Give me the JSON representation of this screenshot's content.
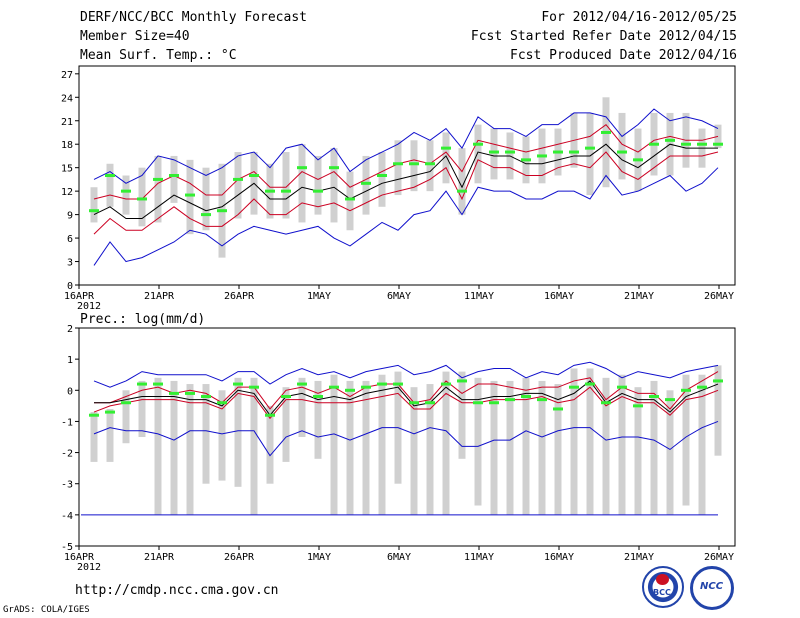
{
  "header": {
    "title": "DERF/NCC/BCC Monthly Forecast",
    "member_size": "Member Size=40",
    "variable": "Mean Surf. Temp.: °C",
    "period": "For 2012/04/16-2012/05/25",
    "started": "Fcst Started Refer Date 2012/04/15",
    "produced": "Fcst Produced Date 2012/04/16"
  },
  "footer": {
    "url": "http://cmdp.ncc.cma.gov.cn",
    "credit": "GrADS: COLA/IGES"
  },
  "logos": {
    "bcc": "BCC",
    "ncc": "NCC"
  },
  "colors": {
    "box": "#d0d0d0",
    "spread": "#1010cc",
    "quartile": "#cc0022",
    "mean": "#000000",
    "obs": "#33ee33",
    "axis": "#000000"
  },
  "chart_data": [
    {
      "type": "line",
      "label": "Mean Surf. Temp.: °C",
      "x_tick_labels": [
        "16APR",
        "21APR",
        "26APR",
        "1MAY",
        "6MAY",
        "11MAY",
        "16MAY",
        "21MAY",
        "26MAY"
      ],
      "x_year_label": "2012",
      "days": 40,
      "ylim": [
        0,
        28
      ],
      "yticks": [
        0,
        3,
        6,
        9,
        12,
        15,
        18,
        21,
        24,
        27
      ],
      "series": [
        {
          "name": "max",
          "values": [
            13.5,
            14.5,
            13.0,
            14.0,
            16.5,
            16.0,
            15.0,
            14.0,
            15.0,
            16.5,
            17.0,
            15.0,
            17.5,
            18.0,
            16.0,
            17.5,
            14.5,
            16.0,
            17.0,
            18.0,
            19.5,
            18.5,
            20.0,
            17.5,
            21.5,
            20.0,
            20.0,
            19.0,
            20.5,
            20.5,
            22.0,
            22.0,
            21.5,
            19.0,
            20.5,
            22.5,
            21.0,
            21.5,
            21.0,
            20.0
          ]
        },
        {
          "name": "q75",
          "values": [
            11.0,
            11.5,
            11.0,
            11.0,
            13.0,
            14.0,
            13.0,
            11.5,
            11.5,
            13.5,
            14.5,
            12.5,
            12.5,
            14.5,
            13.5,
            14.5,
            12.5,
            13.5,
            14.5,
            15.5,
            16.0,
            15.5,
            17.0,
            14.5,
            18.5,
            18.0,
            17.5,
            17.0,
            17.5,
            18.0,
            18.5,
            19.0,
            20.5,
            18.0,
            17.0,
            18.5,
            19.0,
            18.5,
            18.5,
            19.0
          ]
        },
        {
          "name": "mean",
          "values": [
            9.0,
            10.0,
            8.5,
            8.5,
            10.0,
            11.5,
            10.5,
            9.5,
            10.0,
            11.5,
            13.0,
            11.0,
            11.0,
            12.5,
            12.0,
            12.5,
            11.0,
            12.0,
            13.0,
            13.5,
            14.0,
            14.5,
            16.5,
            12.5,
            17.0,
            16.5,
            16.5,
            15.5,
            15.5,
            16.0,
            16.5,
            16.5,
            18.0,
            16.0,
            15.0,
            16.5,
            18.0,
            17.5,
            17.5,
            17.5
          ]
        },
        {
          "name": "q25",
          "values": [
            6.5,
            8.5,
            7.0,
            7.0,
            8.5,
            10.0,
            8.5,
            7.5,
            7.5,
            9.0,
            11.0,
            9.0,
            9.0,
            10.5,
            10.0,
            10.5,
            9.5,
            10.5,
            11.5,
            12.0,
            12.5,
            13.5,
            15.0,
            11.0,
            16.0,
            15.0,
            15.0,
            14.0,
            14.0,
            15.0,
            15.5,
            15.0,
            17.0,
            14.5,
            13.5,
            15.0,
            16.5,
            16.5,
            16.5,
            17.0
          ]
        },
        {
          "name": "min",
          "values": [
            2.5,
            5.5,
            3.0,
            3.5,
            4.5,
            5.5,
            7.0,
            6.5,
            5.0,
            6.5,
            7.5,
            7.0,
            6.5,
            7.0,
            7.5,
            6.0,
            5.0,
            6.5,
            8.0,
            7.0,
            9.0,
            9.5,
            12.0,
            9.0,
            12.5,
            12.0,
            12.0,
            11.0,
            11.0,
            12.0,
            12.0,
            11.0,
            14.0,
            11.5,
            12.0,
            13.0,
            14.0,
            12.0,
            13.0,
            15.0
          ]
        },
        {
          "name": "obs",
          "values": [
            9.5,
            14.0,
            12.0,
            11.0,
            13.5,
            14.0,
            11.5,
            9.0,
            9.5,
            13.5,
            14.0,
            12.0,
            12.0,
            15.0,
            12.0,
            15.0,
            11.0,
            13.0,
            14.0,
            15.5,
            15.5,
            15.5,
            17.5,
            12.0,
            18.0,
            17.0,
            17.0,
            16.0,
            16.5,
            17.0,
            17.0,
            17.5,
            19.5,
            17.0,
            16.0,
            18.0,
            18.5,
            18.0,
            18.0,
            18.0
          ]
        }
      ],
      "boxes": {
        "high": [
          12.5,
          15.5,
          14.0,
          15.0,
          16.5,
          16.5,
          16.0,
          15.0,
          15.5,
          17.0,
          17.0,
          15.5,
          17.0,
          18.0,
          16.5,
          17.5,
          14.5,
          16.5,
          17.0,
          18.5,
          18.5,
          18.5,
          19.5,
          17.5,
          20.5,
          20.0,
          19.5,
          19.0,
          20.0,
          20.0,
          22.0,
          22.0,
          24.0,
          22.0,
          20.0,
          22.0,
          22.0,
          22.0,
          20.0,
          20.5
        ],
        "low": [
          8.0,
          10.0,
          9.0,
          7.5,
          8.0,
          10.5,
          6.5,
          7.0,
          3.5,
          8.5,
          9.0,
          8.5,
          8.5,
          8.0,
          9.0,
          8.0,
          7.0,
          9.0,
          10.0,
          11.5,
          12.0,
          12.0,
          13.0,
          9.0,
          13.0,
          13.5,
          13.5,
          13.0,
          13.0,
          14.0,
          15.0,
          11.5,
          12.5,
          13.5,
          12.0,
          14.0,
          14.0,
          15.0,
          15.0,
          17.5
        ]
      }
    },
    {
      "type": "line",
      "label": "Prec.: log(mm/d)",
      "x_tick_labels": [
        "16APR",
        "21APR",
        "26APR",
        "1MAY",
        "6MAY",
        "11MAY",
        "16MAY",
        "21MAY",
        "26MAY"
      ],
      "x_year_label": "2012",
      "days": 40,
      "ylim": [
        -5,
        2
      ],
      "yticks": [
        -5,
        -4,
        -3,
        -2,
        -1,
        0,
        1,
        2
      ],
      "series": [
        {
          "name": "max",
          "values": [
            0.3,
            0.1,
            0.3,
            0.6,
            0.5,
            0.5,
            0.5,
            0.5,
            0.3,
            0.6,
            0.6,
            0.2,
            0.5,
            0.7,
            0.5,
            0.6,
            0.4,
            0.6,
            0.7,
            0.8,
            0.5,
            0.6,
            0.8,
            0.4,
            0.6,
            0.7,
            0.7,
            0.4,
            0.6,
            0.5,
            0.8,
            0.9,
            0.7,
            0.4,
            0.6,
            0.5,
            0.4,
            0.6,
            0.7,
            0.8
          ]
        },
        {
          "name": "q75",
          "values": [
            -0.4,
            -0.4,
            -0.2,
            0.0,
            0.1,
            -0.1,
            0.0,
            -0.1,
            -0.4,
            0.1,
            0.1,
            -0.6,
            0.0,
            0.1,
            -0.1,
            0.1,
            -0.2,
            0.1,
            0.2,
            0.2,
            -0.4,
            -0.3,
            0.3,
            -0.1,
            0.2,
            0.2,
            0.1,
            0.0,
            0.1,
            0.1,
            0.3,
            0.4,
            -0.3,
            0.1,
            -0.1,
            -0.1,
            -0.6,
            0.0,
            0.3,
            0.6
          ]
        },
        {
          "name": "mean",
          "values": [
            -0.4,
            -0.4,
            -0.3,
            -0.2,
            -0.2,
            -0.2,
            -0.3,
            -0.3,
            -0.5,
            0.0,
            -0.1,
            -0.8,
            -0.2,
            -0.1,
            -0.3,
            -0.2,
            -0.3,
            -0.1,
            0.0,
            0.1,
            -0.5,
            -0.4,
            0.1,
            -0.3,
            -0.3,
            -0.2,
            -0.2,
            -0.1,
            -0.1,
            -0.3,
            -0.1,
            0.3,
            -0.4,
            -0.1,
            -0.3,
            -0.3,
            -0.7,
            -0.2,
            0.0,
            0.2
          ]
        },
        {
          "name": "q25",
          "values": [
            -0.7,
            -0.5,
            -0.4,
            -0.3,
            -0.3,
            -0.3,
            -0.4,
            -0.4,
            -0.6,
            -0.1,
            -0.2,
            -0.9,
            -0.3,
            -0.3,
            -0.4,
            -0.4,
            -0.4,
            -0.3,
            -0.2,
            -0.1,
            -0.6,
            -0.6,
            -0.1,
            -0.4,
            -0.4,
            -0.3,
            -0.3,
            -0.3,
            -0.2,
            -0.4,
            -0.3,
            0.1,
            -0.5,
            -0.2,
            -0.4,
            -0.4,
            -0.8,
            -0.3,
            -0.2,
            0.0
          ]
        },
        {
          "name": "min",
          "values": [
            -1.4,
            -1.2,
            -1.3,
            -1.3,
            -1.4,
            -1.6,
            -1.3,
            -1.3,
            -1.4,
            -1.3,
            -1.3,
            -2.1,
            -1.5,
            -1.3,
            -1.5,
            -1.4,
            -1.6,
            -1.4,
            -1.2,
            -1.2,
            -1.4,
            -1.2,
            -1.3,
            -1.8,
            -1.8,
            -1.6,
            -1.6,
            -1.3,
            -1.5,
            -1.3,
            -1.2,
            -1.2,
            -1.6,
            -1.5,
            -1.5,
            -1.6,
            -1.9,
            -1.5,
            -1.2,
            -1.0
          ]
        },
        {
          "name": "obs",
          "values": [
            -0.8,
            -0.7,
            -0.4,
            0.2,
            0.2,
            -0.1,
            -0.1,
            -0.2,
            -0.4,
            0.2,
            0.1,
            -0.8,
            -0.2,
            0.2,
            -0.2,
            0.1,
            0.0,
            0.1,
            0.2,
            0.2,
            -0.4,
            -0.4,
            0.2,
            0.3,
            -0.4,
            -0.4,
            -0.3,
            -0.2,
            -0.3,
            -0.6,
            0.1,
            0.2,
            -0.4,
            0.1,
            -0.5,
            -0.2,
            -0.3,
            0.0,
            0.1,
            0.3
          ]
        }
      ],
      "boxes": {
        "high": [
          -0.7,
          -0.6,
          0.0,
          0.3,
          0.4,
          0.3,
          0.2,
          0.2,
          0.0,
          0.4,
          0.4,
          -0.5,
          0.1,
          0.4,
          0.3,
          0.5,
          0.3,
          0.3,
          0.5,
          0.6,
          0.1,
          0.2,
          0.6,
          0.6,
          0.4,
          0.3,
          0.3,
          0.4,
          0.3,
          0.2,
          0.7,
          0.7,
          0.4,
          0.5,
          0.1,
          0.3,
          0.0,
          0.5,
          0.5,
          0.8
        ],
        "low": [
          -2.3,
          -2.3,
          -1.7,
          -1.5,
          -4.0,
          -4.0,
          -4.0,
          -3.0,
          -2.9,
          -3.1,
          -4.0,
          -3.0,
          -2.3,
          -1.5,
          -2.2,
          -4.0,
          -4.0,
          -4.0,
          -4.0,
          -3.0,
          -4.0,
          -4.0,
          -4.0,
          -2.2,
          -3.7,
          -4.0,
          -4.0,
          -4.0,
          -4.0,
          -4.0,
          -4.0,
          -4.0,
          -4.0,
          -4.0,
          -4.0,
          -4.0,
          -4.0,
          -3.7,
          -4.0,
          -2.1
        ]
      },
      "baseline": -4
    }
  ]
}
